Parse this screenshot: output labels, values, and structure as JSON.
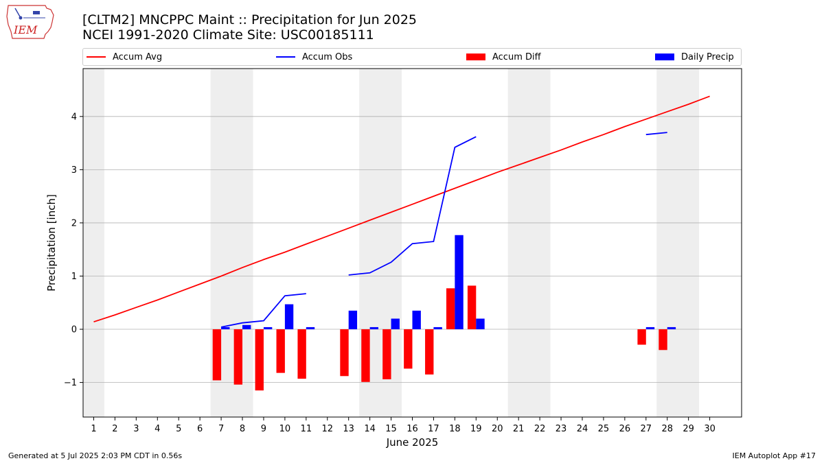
{
  "logo": {
    "text": "IEM"
  },
  "header": {
    "title_line1": "[CLTM2] MNCPPC Maint :: Precipitation for Jun 2025",
    "title_line2": "NCEI 1991-2020 Climate Site: USC00185111"
  },
  "legend": {
    "accum_avg": "Accum Avg",
    "accum_obs": "Accum Obs",
    "accum_diff": "Accum Diff",
    "daily_precip": "Daily Precip"
  },
  "colors": {
    "avg": "#ff0000",
    "obs": "#0000ff",
    "diff": "#ff0000",
    "daily": "#0000ff",
    "weekend": "#eeeeee",
    "grid": "#b0b0b0"
  },
  "footer": {
    "left": "Generated at 5 Jul 2025 2:03 PM CDT in 0.56s",
    "right": "IEM Autoplot App #17"
  },
  "chart_data": {
    "type": "bar",
    "xlabel": "June 2025",
    "ylabel": "Precipitation [inch]",
    "xlim": [
      0.5,
      31.5
    ],
    "ylim": [
      -1.65,
      4.9
    ],
    "yticks": [
      -1,
      0,
      1,
      2,
      3,
      4
    ],
    "ytick_labels": [
      "−1",
      "0",
      "1",
      "2",
      "3",
      "4"
    ],
    "categories": [
      "1",
      "2",
      "3",
      "4",
      "5",
      "6",
      "7",
      "8",
      "9",
      "10",
      "11",
      "12",
      "13",
      "14",
      "15",
      "16",
      "17",
      "18",
      "19",
      "20",
      "21",
      "22",
      "23",
      "24",
      "25",
      "26",
      "27",
      "28",
      "29",
      "30"
    ],
    "grid": "horizontal",
    "legend_position": "top",
    "weekend_bands": [
      [
        0.5,
        1.5
      ],
      [
        6.5,
        8.5
      ],
      [
        13.5,
        15.5
      ],
      [
        20.5,
        22.5
      ],
      [
        27.5,
        29.5
      ]
    ],
    "series": [
      {
        "name": "Accum Avg",
        "kind": "line",
        "values": [
          0.14,
          0.27,
          0.41,
          0.55,
          0.7,
          0.85,
          1.0,
          1.16,
          1.31,
          1.45,
          1.6,
          1.75,
          1.9,
          2.05,
          2.2,
          2.35,
          2.5,
          2.65,
          2.8,
          2.95,
          3.09,
          3.23,
          3.37,
          3.52,
          3.66,
          3.81,
          3.95,
          4.09,
          4.23,
          4.38
        ]
      },
      {
        "name": "Accum Obs",
        "kind": "line",
        "values": [
          null,
          null,
          null,
          null,
          null,
          null,
          0.04,
          0.12,
          0.16,
          0.63,
          0.67,
          null,
          1.02,
          1.06,
          1.26,
          1.61,
          1.65,
          3.42,
          3.62,
          null,
          null,
          null,
          null,
          null,
          null,
          null,
          3.66,
          3.7,
          null,
          null
        ]
      },
      {
        "name": "Accum Diff",
        "kind": "bar",
        "values": [
          null,
          null,
          null,
          null,
          null,
          null,
          -0.96,
          -1.04,
          -1.15,
          -0.82,
          -0.93,
          null,
          -0.88,
          -0.99,
          -0.94,
          -0.74,
          -0.85,
          0.77,
          0.82,
          null,
          null,
          null,
          null,
          null,
          null,
          null,
          -0.29,
          -0.39,
          null,
          null
        ]
      },
      {
        "name": "Daily Precip",
        "kind": "bar",
        "values": [
          null,
          null,
          null,
          null,
          null,
          null,
          0.04,
          0.08,
          0.04,
          0.47,
          0.04,
          null,
          0.35,
          0.04,
          0.2,
          0.35,
          0.04,
          1.77,
          0.2,
          null,
          null,
          null,
          null,
          null,
          null,
          null,
          0.04,
          0.04,
          null,
          null
        ]
      }
    ]
  }
}
